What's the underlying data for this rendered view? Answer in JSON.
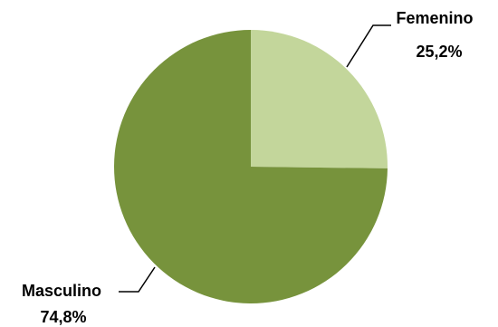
{
  "chart_data": {
    "type": "pie",
    "title": "",
    "categories": [
      "Femenino",
      "Masculino"
    ],
    "values": [
      25.2,
      74.8
    ],
    "value_labels": [
      "25,2%",
      "74,8%"
    ],
    "colors": [
      "#c3d69b",
      "#77933c"
    ],
    "start": "12 o'clock, clockwise",
    "legend": "none"
  }
}
